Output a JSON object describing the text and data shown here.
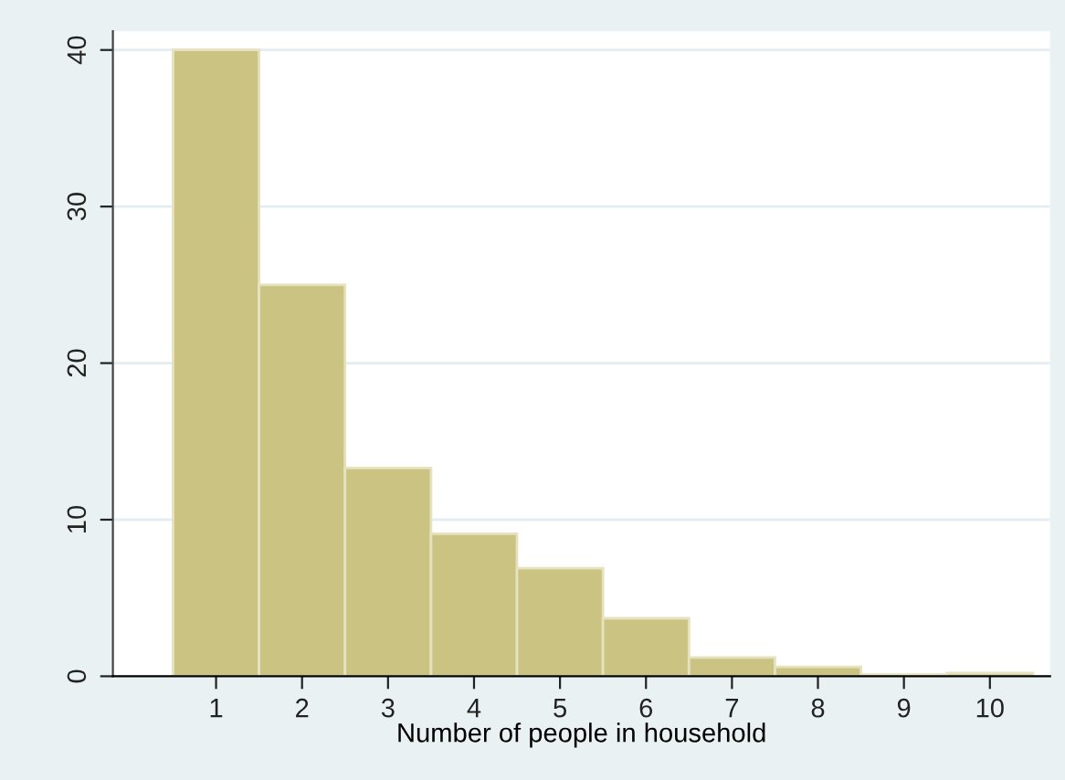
{
  "chart_data": {
    "type": "histogram",
    "xlabel": "Number of people in household",
    "bins": [
      0.5,
      1.5,
      2.5,
      3.5,
      4.5,
      5.5,
      6.5,
      7.5,
      8.5,
      9.5,
      10.5
    ],
    "values": [
      40,
      25,
      13.3,
      9.1,
      6.9,
      3.7,
      1.2,
      0.6,
      0.1,
      0.2
    ],
    "color": "#cbc382",
    "xlim": [
      -0.2,
      10.7
    ],
    "xticks": [
      1,
      2,
      3,
      4,
      5,
      6,
      7,
      8,
      9,
      10
    ],
    "ylim": [
      0,
      41.2
    ],
    "yticks": [
      0,
      10,
      20,
      30,
      40
    ],
    "grid": "y"
  }
}
